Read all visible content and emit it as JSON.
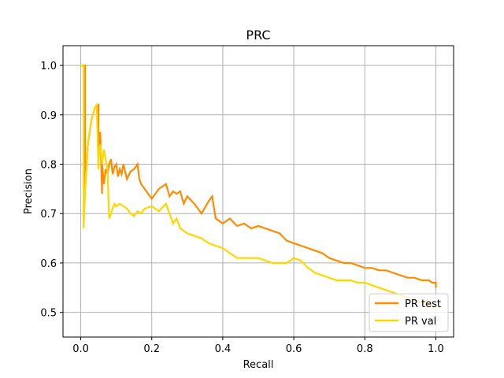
{
  "chart_data": {
    "type": "line",
    "title": "PRC",
    "xlabel": "Recall",
    "ylabel": "Precision",
    "xlim": [
      -0.05,
      1.05
    ],
    "ylim": [
      0.45,
      1.04
    ],
    "xticks": [
      0.0,
      0.2,
      0.4,
      0.6,
      0.8,
      1.0
    ],
    "xtick_labels": [
      "0.0",
      "0.2",
      "0.4",
      "0.6",
      "0.8",
      "1.0"
    ],
    "yticks": [
      0.5,
      0.6,
      0.7,
      0.8,
      0.9,
      1.0
    ],
    "ytick_labels": [
      "0.5",
      "0.6",
      "0.7",
      "0.8",
      "0.9",
      "1.0"
    ],
    "grid": true,
    "legend_position": "lower-right",
    "series": [
      {
        "name": "PR test",
        "color": "#ff8c00",
        "x": [
          0.0,
          0.012,
          0.012,
          0.02,
          0.03,
          0.04,
          0.05,
          0.05,
          0.055,
          0.06,
          0.06,
          0.065,
          0.07,
          0.075,
          0.08,
          0.085,
          0.09,
          0.095,
          0.1,
          0.105,
          0.11,
          0.115,
          0.12,
          0.13,
          0.14,
          0.15,
          0.16,
          0.165,
          0.17,
          0.18,
          0.19,
          0.2,
          0.22,
          0.24,
          0.25,
          0.26,
          0.27,
          0.28,
          0.29,
          0.3,
          0.32,
          0.34,
          0.36,
          0.37,
          0.38,
          0.4,
          0.42,
          0.44,
          0.46,
          0.48,
          0.5,
          0.52,
          0.54,
          0.56,
          0.58,
          0.6,
          0.62,
          0.64,
          0.66,
          0.68,
          0.7,
          0.72,
          0.74,
          0.76,
          0.78,
          0.8,
          0.82,
          0.84,
          0.86,
          0.88,
          0.9,
          0.92,
          0.94,
          0.96,
          0.98,
          0.99,
          1.0,
          1.0
        ],
        "y": [
          1.0,
          1.0,
          0.75,
          0.84,
          0.89,
          0.915,
          0.92,
          0.83,
          0.865,
          0.74,
          0.8,
          0.76,
          0.79,
          0.78,
          0.8,
          0.81,
          0.78,
          0.795,
          0.8,
          0.775,
          0.79,
          0.78,
          0.8,
          0.77,
          0.785,
          0.79,
          0.8,
          0.77,
          0.76,
          0.75,
          0.74,
          0.73,
          0.75,
          0.76,
          0.735,
          0.745,
          0.74,
          0.745,
          0.72,
          0.735,
          0.72,
          0.7,
          0.725,
          0.735,
          0.69,
          0.68,
          0.69,
          0.675,
          0.68,
          0.67,
          0.675,
          0.67,
          0.665,
          0.66,
          0.645,
          0.64,
          0.635,
          0.63,
          0.625,
          0.62,
          0.61,
          0.605,
          0.6,
          0.6,
          0.595,
          0.59,
          0.59,
          0.585,
          0.585,
          0.58,
          0.575,
          0.57,
          0.57,
          0.565,
          0.565,
          0.56,
          0.56,
          0.55
        ]
      },
      {
        "name": "PR val",
        "color": "#ffd700",
        "x": [
          0.0,
          0.008,
          0.008,
          0.012,
          0.02,
          0.03,
          0.04,
          0.045,
          0.05,
          0.05,
          0.055,
          0.06,
          0.065,
          0.07,
          0.075,
          0.08,
          0.085,
          0.09,
          0.095,
          0.1,
          0.11,
          0.12,
          0.13,
          0.14,
          0.15,
          0.16,
          0.17,
          0.18,
          0.2,
          0.22,
          0.24,
          0.26,
          0.27,
          0.28,
          0.3,
          0.32,
          0.34,
          0.36,
          0.38,
          0.4,
          0.42,
          0.44,
          0.46,
          0.48,
          0.5,
          0.52,
          0.54,
          0.56,
          0.58,
          0.6,
          0.62,
          0.64,
          0.66,
          0.68,
          0.7,
          0.72,
          0.74,
          0.76,
          0.78,
          0.8,
          0.82,
          0.84,
          0.86,
          0.88,
          0.9,
          0.92,
          0.94,
          0.96,
          0.98,
          1.0
        ],
        "y": [
          1.0,
          1.0,
          0.67,
          0.74,
          0.84,
          0.89,
          0.915,
          0.92,
          0.79,
          0.81,
          0.84,
          0.8,
          0.83,
          0.81,
          0.79,
          0.69,
          0.7,
          0.71,
          0.72,
          0.715,
          0.72,
          0.715,
          0.71,
          0.7,
          0.695,
          0.705,
          0.7,
          0.71,
          0.715,
          0.705,
          0.72,
          0.68,
          0.69,
          0.67,
          0.66,
          0.655,
          0.65,
          0.64,
          0.635,
          0.63,
          0.62,
          0.61,
          0.61,
          0.61,
          0.61,
          0.605,
          0.6,
          0.6,
          0.6,
          0.61,
          0.605,
          0.59,
          0.58,
          0.575,
          0.57,
          0.565,
          0.565,
          0.565,
          0.56,
          0.56,
          0.555,
          0.55,
          0.545,
          0.54,
          0.535,
          0.53,
          0.525,
          0.52,
          0.515,
          0.51
        ]
      }
    ]
  }
}
